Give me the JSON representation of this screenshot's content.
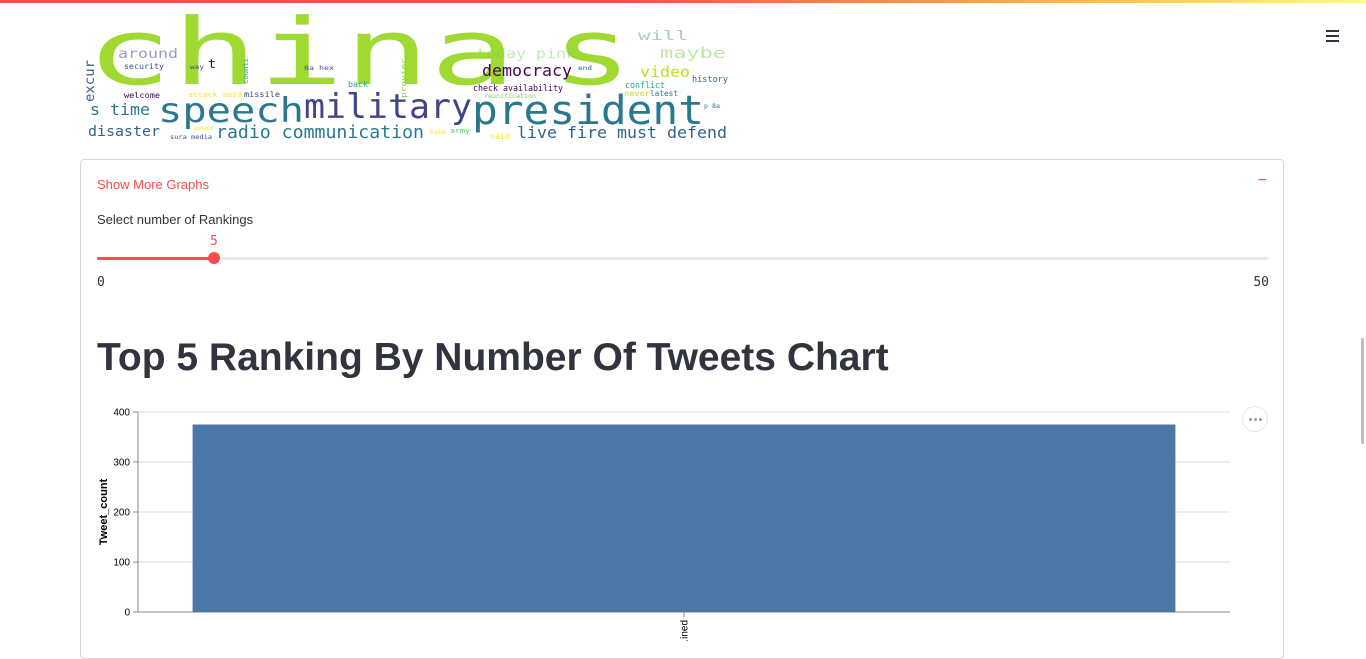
{
  "header": {
    "menu_icon": "hamburger-menu-icon"
  },
  "wordcloud": {
    "words": [
      {
        "text": "china",
        "size": 92,
        "color": "#a0d932"
      },
      {
        "text": "s",
        "size": 92,
        "color": "#a0d932"
      },
      {
        "text": "president",
        "size": 40,
        "color": "#2a788e"
      },
      {
        "text": "military",
        "size": 34,
        "color": "#414487"
      },
      {
        "text": "speech",
        "size": 34,
        "color": "#2a788e"
      },
      {
        "text": "radio communication",
        "size": 18,
        "color": "#2a788e"
      },
      {
        "text": "live fire must defend",
        "size": 16,
        "color": "#33638d"
      },
      {
        "text": "democracy",
        "size": 16,
        "color": "#440154"
      },
      {
        "text": "disaster",
        "size": 14,
        "color": "#33638d"
      },
      {
        "text": "s time",
        "size": 16,
        "color": "#2a788e"
      },
      {
        "text": "video",
        "size": 15,
        "color": "#bddf26"
      },
      {
        "text": "today pink",
        "size": 13,
        "color": "#7ad151"
      },
      {
        "text": "maybe",
        "size": 15,
        "color": "#7ad151"
      },
      {
        "text": "around",
        "size": 13,
        "color": "#3b528b"
      },
      {
        "text": "excur",
        "size": 13,
        "color": "#33638d"
      },
      {
        "text": "will",
        "size": 13,
        "color": "#2a788e"
      },
      {
        "text": "history",
        "size": 9,
        "color": "#33638d"
      },
      {
        "text": "conflict",
        "size": 9,
        "color": "#22a884"
      },
      {
        "text": "check availability",
        "size": 9,
        "color": "#440154"
      },
      {
        "text": "latest",
        "size": 8,
        "color": "#2a788e"
      },
      {
        "text": "never",
        "size": 8,
        "color": "#bddf26"
      },
      {
        "text": "reunification",
        "size": 6,
        "color": "#7ad151"
      },
      {
        "text": "security",
        "size": 8,
        "color": "#3b528b"
      },
      {
        "text": "welcome",
        "size": 8,
        "color": "#440154"
      },
      {
        "text": "attack amid",
        "size": 7,
        "color": "#fde725"
      },
      {
        "text": "missile",
        "size": 8,
        "color": "#414487"
      },
      {
        "text": "back",
        "size": 8,
        "color": "#22a884"
      },
      {
        "text": "provinc",
        "size": 7,
        "color": "#7ad151"
      },
      {
        "text": "said",
        "size": 8,
        "color": "#fde725"
      },
      {
        "text": "army",
        "size": 7,
        "color": "#5ec962"
      },
      {
        "text": "sura media",
        "size": 6,
        "color": "#3b528b"
      },
      {
        "text": "power",
        "size": 6,
        "color": "#fde725"
      },
      {
        "text": "hake",
        "size": 6,
        "color": "#fde725"
      },
      {
        "text": "end",
        "size": 6,
        "color": "#33638d"
      },
      {
        "text": "way",
        "size": 6,
        "color": "#414487"
      },
      {
        "text": "p 8a",
        "size": 6,
        "color": "#2a788e"
      },
      {
        "text": "8a hex",
        "size": 6,
        "color": "#3b528b"
      },
      {
        "text": "counti",
        "size": 7,
        "color": "#22a884"
      },
      {
        "text": "t",
        "size": 12,
        "color": "#440154"
      }
    ]
  },
  "expander": {
    "header_label": "Show More Graphs",
    "toggle_icon": "−"
  },
  "slider": {
    "label": "Select number of Rankings",
    "value": 5,
    "value_text": "5",
    "min": 0,
    "max": 50,
    "min_text": "0",
    "max_text": "50"
  },
  "chart_title": "Top 5 Ranking By Number Of Tweets Chart",
  "more_button_icon": "more-options-icon",
  "chart_data": {
    "type": "bar",
    "categories": [
      "…ined"
    ],
    "values": [
      375
    ],
    "title": "",
    "xlabel": "",
    "ylabel": "Tweet_count",
    "ylim": [
      0,
      400
    ],
    "yticks": [
      "0",
      "100",
      "200",
      "300",
      "400"
    ],
    "grid": true,
    "bar_color": "#4c78a8"
  }
}
